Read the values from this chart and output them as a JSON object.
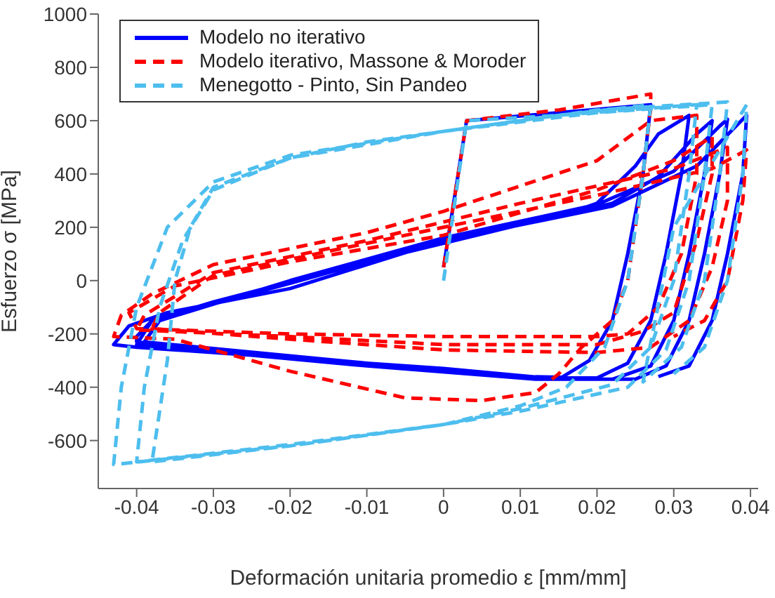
{
  "chart_data": {
    "type": "line",
    "xlabel": "Deformación unitaria promedio ε [mm/mm]",
    "ylabel": "Esfuerzo σ [MPa]",
    "xlim": [
      -0.045,
      0.041
    ],
    "xticks": [
      -0.04,
      -0.03,
      -0.02,
      -0.01,
      0,
      0.01,
      0.02,
      0.03,
      0.04
    ],
    "ylim": [
      -780,
      1000
    ],
    "yticks": [
      -600,
      -400,
      -200,
      0,
      200,
      400,
      600,
      800,
      1000
    ],
    "grid": false,
    "legend": "top left",
    "marker": "none",
    "series": [
      {
        "name": "Modelo no iterativo",
        "color": "#0000ff",
        "line_style": "solid",
        "x": [
          0,
          0.003,
          0.015,
          0.027,
          0.026,
          0.024,
          0.022,
          0.019,
          0.015,
          0.0,
          -0.02,
          -0.04,
          -0.043,
          -0.041,
          -0.036,
          -0.02,
          0,
          0.015,
          0.02,
          0.025,
          0.028,
          0.032,
          0.031,
          0.029,
          0.027,
          0.024,
          0.02,
          0.01,
          -0.01,
          -0.03,
          -0.04,
          -0.04,
          -0.038,
          -0.03,
          -0.01,
          0.01,
          0.022,
          0.028,
          0.033,
          0.035,
          0.034,
          0.032,
          0.03,
          0.027,
          0.022,
          0.01,
          -0.01,
          -0.039,
          -0.037,
          -0.02,
          0.0,
          0.02,
          0.03,
          0.036,
          0.037,
          0.036,
          0.034,
          0.032,
          0.029,
          0.025,
          0.012,
          -0.01,
          -0.04,
          -0.038,
          -0.02,
          0,
          0.022,
          0.033,
          0.0395,
          0.039,
          0.037,
          0.035,
          0.032,
          0.028
        ],
        "values": [
          50,
          600,
          630,
          660,
          400,
          100,
          -150,
          -300,
          -370,
          -330,
          -290,
          -250,
          -240,
          -170,
          -120,
          -30,
          150,
          240,
          290,
          430,
          550,
          620,
          400,
          100,
          -150,
          -310,
          -365,
          -360,
          -310,
          -260,
          -230,
          -210,
          -150,
          -80,
          70,
          210,
          290,
          390,
          550,
          600,
          400,
          100,
          -150,
          -320,
          -370,
          -360,
          -310,
          -230,
          -150,
          0,
          160,
          285,
          410,
          580,
          605,
          400,
          100,
          -150,
          -320,
          -370,
          -370,
          -320,
          -240,
          -150,
          -10,
          150,
          280,
          430,
          620,
          400,
          100,
          -150,
          -320,
          -360
        ]
      },
      {
        "name": "Modelo iterativo, Massone & Moroder",
        "color": "#ff0000",
        "line_style": "dashed",
        "x": [
          0,
          0.003,
          0.015,
          0.027,
          0.027,
          0.026,
          0.024,
          0.022,
          0.018,
          0.015,
          0.012,
          0.005,
          -0.005,
          -0.02,
          -0.035,
          -0.043,
          -0.042,
          -0.038,
          -0.03,
          -0.01,
          0.0,
          0.02,
          0.027,
          0.033,
          0.033,
          0.031,
          0.028,
          0.024,
          0.02,
          0.0,
          -0.02,
          -0.04,
          -0.041,
          -0.035,
          -0.02,
          0,
          0.02,
          0.03,
          0.035,
          0.035,
          0.033,
          0.03,
          0.026,
          0.02,
          0,
          -0.02,
          -0.04,
          -0.039,
          -0.03,
          -0.01,
          0.01,
          0.03,
          0.037,
          0.037,
          0.035,
          0.032,
          0.027,
          0.02,
          0,
          -0.02,
          -0.038,
          -0.037,
          -0.03,
          0,
          0.02,
          0.035,
          0.0395,
          0.039,
          0.037,
          0.034,
          0.03
        ],
        "values": [
          50,
          600,
          640,
          700,
          650,
          400,
          0,
          -150,
          -250,
          -350,
          -420,
          -450,
          -440,
          -340,
          -220,
          -210,
          -130,
          -50,
          60,
          180,
          260,
          450,
          600,
          620,
          400,
          100,
          -100,
          -200,
          -210,
          -210,
          -200,
          -180,
          -120,
          -20,
          70,
          170,
          340,
          450,
          540,
          400,
          150,
          -120,
          -190,
          -240,
          -240,
          -210,
          -185,
          -130,
          30,
          150,
          290,
          420,
          500,
          300,
          50,
          -150,
          -250,
          -270,
          -260,
          -220,
          -180,
          -120,
          20,
          200,
          320,
          420,
          490,
          300,
          0,
          -150,
          -210
        ]
      },
      {
        "name": "Menegotto - Pinto, Sin Pandeo",
        "color": "#4dbeee",
        "line_style": "dashed",
        "x": [
          0,
          0.003,
          0.015,
          0.027,
          0.026,
          0.024,
          0.021,
          0.016,
          0.01,
          0,
          -0.02,
          -0.038,
          -0.036,
          -0.035,
          -0.033,
          -0.03,
          -0.02,
          -0.01,
          0,
          0.015,
          0.033,
          0.032,
          0.03,
          0.027,
          0.022,
          0.01,
          0,
          -0.02,
          -0.04,
          -0.039,
          -0.037,
          -0.034,
          -0.03,
          -0.02,
          0,
          0.02,
          0.035,
          0.034,
          0.032,
          0.029,
          0.024,
          0.01,
          0,
          -0.02,
          -0.043,
          -0.042,
          -0.04,
          -0.036,
          -0.03,
          -0.02,
          0,
          0.02,
          0.037,
          0.036,
          0.034,
          0.031,
          0.026,
          0.03,
          0.0395,
          0.039,
          0.037,
          0.034,
          0.03
        ],
        "values": [
          0,
          600,
          620,
          660,
          400,
          0,
          -250,
          -400,
          -470,
          -540,
          -620,
          -680,
          -300,
          0,
          200,
          350,
          460,
          520,
          560,
          620,
          660,
          400,
          0,
          -250,
          -390,
          -480,
          -540,
          -615,
          -680,
          -400,
          -100,
          150,
          340,
          460,
          560,
          630,
          660,
          400,
          0,
          -260,
          -400,
          -490,
          -540,
          -620,
          -690,
          -400,
          -100,
          200,
          370,
          470,
          560,
          640,
          670,
          400,
          0,
          -250,
          -380,
          200,
          660,
          400,
          0,
          -250,
          -350
        ]
      }
    ]
  }
}
